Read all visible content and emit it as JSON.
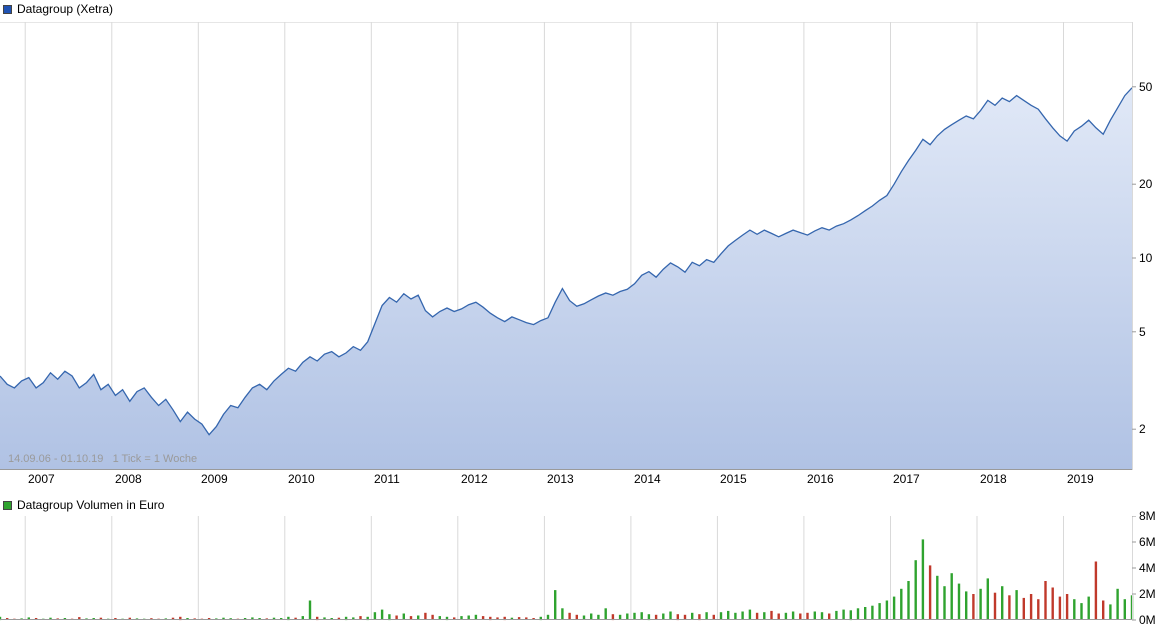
{
  "price_chart": {
    "legend_label": "Datagroup (Xetra)",
    "legend_color": "#2053b4",
    "footnote": "14.09.06 - 01.10.19   1 Tick = 1 Woche",
    "line_color": "#3566ae",
    "fill_top": "#e9effa",
    "fill_bottom": "#b0c2e4"
  },
  "volume_chart": {
    "legend_label": "Datagroup Volumen in Euro",
    "legend_color": "#2fa32f",
    "up_color": "#2fa32f",
    "down_color": "#c0392b"
  },
  "chart_data": [
    {
      "type": "area",
      "title": "Datagroup (Xetra)",
      "timeframe": "14.09.06 - 01.10.19",
      "tick_interval": "1 Tick = 1 Woche",
      "x_unit": "month",
      "x_start": "2006-09",
      "x_end": "2019-10",
      "x_tick_labels": [
        "2007",
        "2008",
        "2009",
        "2010",
        "2011",
        "2012",
        "2013",
        "2014",
        "2015",
        "2016",
        "2017",
        "2018",
        "2019"
      ],
      "y_scale": "log",
      "y_axis_side": "right",
      "y_ticks": [
        2,
        5,
        10,
        20,
        50
      ],
      "ylim": [
        1.8,
        92
      ],
      "series": [
        {
          "name": "Datagroup (Xetra)",
          "values": [
            3.3,
            3.05,
            2.95,
            3.15,
            3.25,
            2.95,
            3.1,
            3.4,
            3.2,
            3.45,
            3.3,
            2.95,
            3.1,
            3.35,
            2.9,
            3.05,
            2.75,
            2.9,
            2.6,
            2.85,
            2.95,
            2.7,
            2.5,
            2.65,
            2.4,
            2.15,
            2.35,
            2.2,
            2.1,
            1.9,
            2.05,
            2.3,
            2.5,
            2.45,
            2.7,
            2.95,
            3.05,
            2.9,
            3.15,
            3.35,
            3.55,
            3.45,
            3.75,
            3.95,
            3.8,
            4.05,
            4.15,
            3.95,
            4.1,
            4.35,
            4.2,
            4.55,
            5.4,
            6.4,
            6.9,
            6.6,
            7.15,
            6.8,
            7.05,
            6.1,
            5.75,
            6.05,
            6.25,
            6.05,
            6.2,
            6.45,
            6.6,
            6.3,
            5.95,
            5.7,
            5.5,
            5.75,
            5.6,
            5.45,
            5.35,
            5.55,
            5.7,
            6.6,
            7.5,
            6.7,
            6.35,
            6.5,
            6.75,
            7.0,
            7.2,
            7.05,
            7.3,
            7.45,
            7.85,
            8.5,
            8.8,
            8.35,
            9.0,
            9.55,
            9.2,
            8.75,
            9.6,
            9.3,
            9.85,
            9.6,
            10.4,
            11.2,
            11.8,
            12.4,
            13.0,
            12.5,
            13.0,
            12.6,
            12.2,
            12.6,
            13.0,
            12.7,
            12.4,
            12.9,
            13.3,
            13.0,
            13.5,
            13.8,
            14.3,
            14.9,
            15.6,
            16.3,
            17.2,
            18.0,
            20.0,
            22.5,
            25.0,
            27.5,
            30.5,
            29.0,
            31.5,
            33.5,
            35.0,
            36.5,
            38.0,
            37.0,
            40.0,
            44.0,
            42.0,
            45.0,
            43.5,
            46.0,
            44.0,
            42.0,
            40.5,
            37.0,
            34.0,
            31.5,
            30.0,
            33.0,
            34.5,
            36.5,
            34.0,
            32.0,
            36.5,
            41.0,
            46.0,
            49.5
          ]
        }
      ]
    },
    {
      "type": "bar",
      "title": "Datagroup Volumen in Euro",
      "x_unit": "month",
      "x_start": "2006-09",
      "x_end": "2019-10",
      "y_ticks": [
        0,
        2,
        4,
        6,
        8
      ],
      "y_tick_suffix": "M",
      "ylim": [
        0,
        8
      ],
      "series": [
        {
          "name": "Volumen in Euro (Millionen)",
          "values": [
            0.25,
            0.15,
            0.1,
            0.12,
            0.2,
            0.15,
            0.1,
            0.18,
            0.12,
            0.15,
            0.1,
            0.22,
            0.12,
            0.15,
            0.18,
            0.1,
            0.15,
            0.1,
            0.18,
            0.12,
            0.1,
            0.14,
            0.1,
            0.12,
            0.18,
            0.25,
            0.15,
            0.12,
            0.1,
            0.15,
            0.12,
            0.18,
            0.14,
            0.1,
            0.15,
            0.2,
            0.15,
            0.12,
            0.18,
            0.15,
            0.25,
            0.18,
            0.3,
            1.5,
            0.25,
            0.2,
            0.15,
            0.18,
            0.25,
            0.2,
            0.3,
            0.25,
            0.6,
            0.8,
            0.45,
            0.35,
            0.5,
            0.3,
            0.35,
            0.55,
            0.4,
            0.3,
            0.25,
            0.2,
            0.3,
            0.35,
            0.4,
            0.3,
            0.25,
            0.2,
            0.25,
            0.18,
            0.22,
            0.2,
            0.15,
            0.25,
            0.4,
            2.3,
            0.9,
            0.55,
            0.4,
            0.35,
            0.5,
            0.4,
            0.9,
            0.45,
            0.4,
            0.5,
            0.55,
            0.6,
            0.45,
            0.4,
            0.5,
            0.65,
            0.45,
            0.4,
            0.55,
            0.45,
            0.6,
            0.4,
            0.6,
            0.7,
            0.55,
            0.65,
            0.8,
            0.55,
            0.6,
            0.7,
            0.5,
            0.55,
            0.65,
            0.5,
            0.55,
            0.65,
            0.6,
            0.5,
            0.7,
            0.8,
            0.75,
            0.9,
            1.0,
            1.1,
            1.3,
            1.5,
            1.8,
            2.4,
            3.0,
            4.6,
            6.2,
            4.2,
            3.4,
            2.6,
            3.6,
            2.8,
            2.2,
            2.0,
            2.4,
            3.2,
            2.1,
            2.6,
            1.9,
            2.3,
            1.7,
            2.0,
            1.6,
            3.0,
            2.5,
            1.8,
            2.0,
            1.6,
            1.3,
            1.8,
            4.5,
            1.5,
            1.2,
            2.4,
            1.6,
            1.9
          ]
        }
      ]
    }
  ]
}
